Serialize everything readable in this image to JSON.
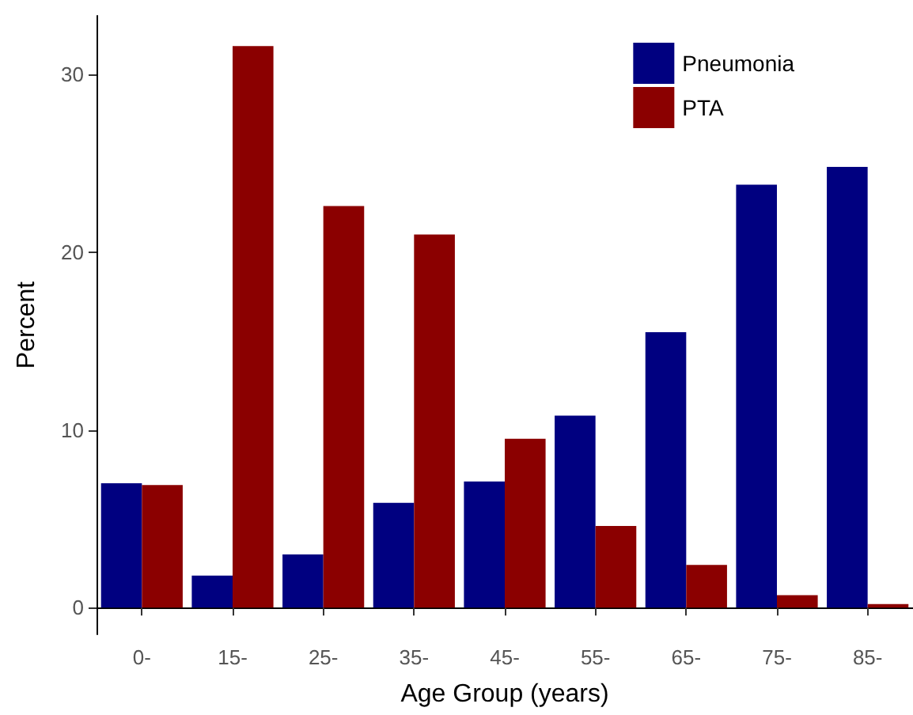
{
  "chart_data": {
    "type": "bar",
    "xlabel": "Age Group (years)",
    "ylabel": "Percent",
    "categories": [
      "0-",
      "15-",
      "25-",
      "35-",
      "45-",
      "55-",
      "65-",
      "75-",
      "85-"
    ],
    "series": [
      {
        "name": "Pneumonia",
        "color": "#000080",
        "values": [
          7.0,
          1.8,
          3.0,
          5.9,
          7.1,
          10.8,
          15.5,
          23.8,
          24.8
        ]
      },
      {
        "name": "PTA",
        "color": "#8b0000",
        "values": [
          6.9,
          31.6,
          22.6,
          21.0,
          9.5,
          4.6,
          2.4,
          0.7,
          0.2
        ]
      }
    ],
    "ylim": [
      -1.5,
      33.3
    ],
    "yticks": [
      0,
      10,
      20,
      30
    ],
    "grid": false,
    "legend": "top right"
  }
}
